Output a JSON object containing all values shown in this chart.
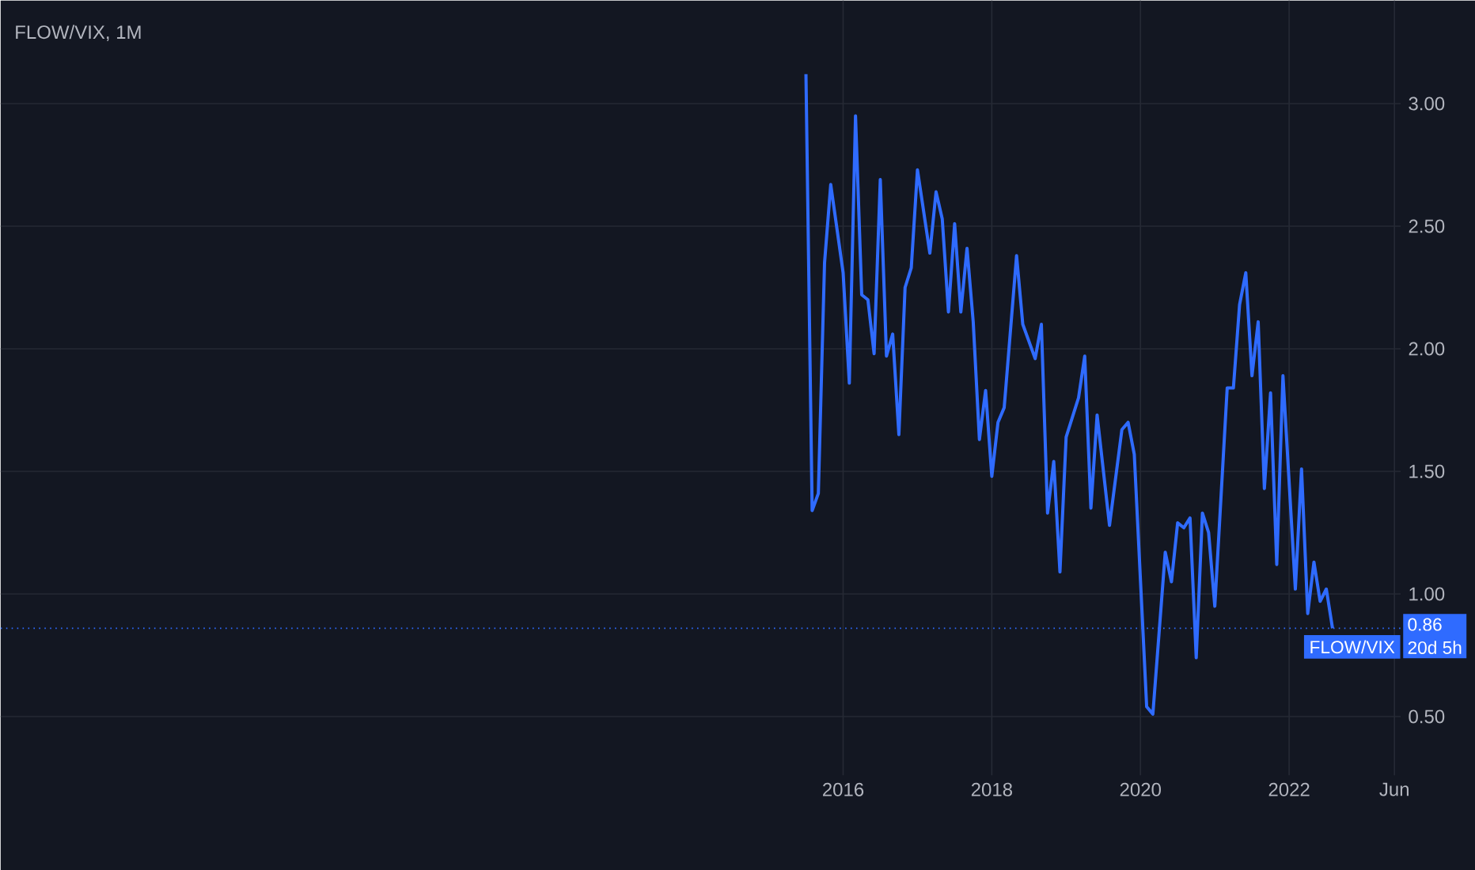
{
  "chart_data": {
    "type": "line",
    "title": "FLOW/VIX, 1M",
    "x": [
      "2015-07",
      "2015-08",
      "2015-09",
      "2015-10",
      "2015-11",
      "2016-01",
      "2016-02",
      "2016-03",
      "2016-04",
      "2016-05",
      "2016-06",
      "2016-07",
      "2016-08",
      "2016-09",
      "2016-10",
      "2016-11",
      "2016-12",
      "2017-01",
      "2017-03",
      "2017-04",
      "2017-05",
      "2017-06",
      "2017-07",
      "2017-08",
      "2017-09",
      "2017-10",
      "2017-11",
      "2017-12",
      "2018-01",
      "2018-02",
      "2018-03",
      "2018-05",
      "2018-06",
      "2018-08",
      "2018-09",
      "2018-10",
      "2018-11",
      "2018-12",
      "2019-01",
      "2019-03",
      "2019-04",
      "2019-05",
      "2019-06",
      "2019-08",
      "2019-10",
      "2019-11",
      "2019-12",
      "2020-02",
      "2020-03",
      "2020-05",
      "2020-06",
      "2020-07",
      "2020-08",
      "2020-09",
      "2020-10",
      "2020-11",
      "2020-12",
      "2021-01",
      "2021-03",
      "2021-04",
      "2021-05",
      "2021-06",
      "2021-07",
      "2021-08",
      "2021-09",
      "2021-10",
      "2021-11",
      "2021-12",
      "2022-02",
      "2022-03",
      "2022-04",
      "2022-05",
      "2022-06",
      "2022-07",
      "2022-08"
    ],
    "series": [
      {
        "name": "FLOW/VIX",
        "color": "#2f6bff",
        "values": [
          3.12,
          1.34,
          1.41,
          2.35,
          2.67,
          2.31,
          1.86,
          2.95,
          2.22,
          2.2,
          1.98,
          2.69,
          1.97,
          2.06,
          1.65,
          2.25,
          2.33,
          2.73,
          2.39,
          2.64,
          2.53,
          2.15,
          2.51,
          2.15,
          2.41,
          2.11,
          1.63,
          1.83,
          1.48,
          1.7,
          1.76,
          2.38,
          2.1,
          1.96,
          2.1,
          1.33,
          1.54,
          1.09,
          1.64,
          1.8,
          1.97,
          1.35,
          1.73,
          1.28,
          1.67,
          1.7,
          1.57,
          0.54,
          0.51,
          1.17,
          1.05,
          1.29,
          1.27,
          1.31,
          0.74,
          1.33,
          1.25,
          0.95,
          1.84,
          1.84,
          2.18,
          2.31,
          1.89,
          2.11,
          1.43,
          1.82,
          1.12,
          1.89,
          1.02,
          1.51,
          0.92,
          1.13,
          0.97,
          1.02,
          0.86
        ]
      }
    ],
    "xlim": [
      "2004-09",
      "2023-07"
    ],
    "xticks": [
      {
        "value": "2016-01",
        "label": "2016"
      },
      {
        "value": "2018-01",
        "label": "2018"
      },
      {
        "value": "2020-01",
        "label": "2020"
      },
      {
        "value": "2022-01",
        "label": "2022"
      },
      {
        "value": "2023-06",
        "label": "Jun"
      }
    ],
    "ylim": [
      0.26,
      3.42
    ],
    "yticks": [
      {
        "value": 0.5,
        "label": "0.50"
      },
      {
        "value": 1.0,
        "label": "1.00"
      },
      {
        "value": 1.5,
        "label": "1.50"
      },
      {
        "value": 2.0,
        "label": "2.00"
      },
      {
        "value": 2.5,
        "label": "2.50"
      },
      {
        "value": 3.0,
        "label": "3.00"
      }
    ],
    "grid": true,
    "ref_lines": [
      {
        "axis": "y",
        "value": 0.86,
        "label": "0.86",
        "color": "#2f6bff",
        "line_style": "dotted"
      }
    ],
    "annotations": [
      "20d 5h"
    ]
  }
}
